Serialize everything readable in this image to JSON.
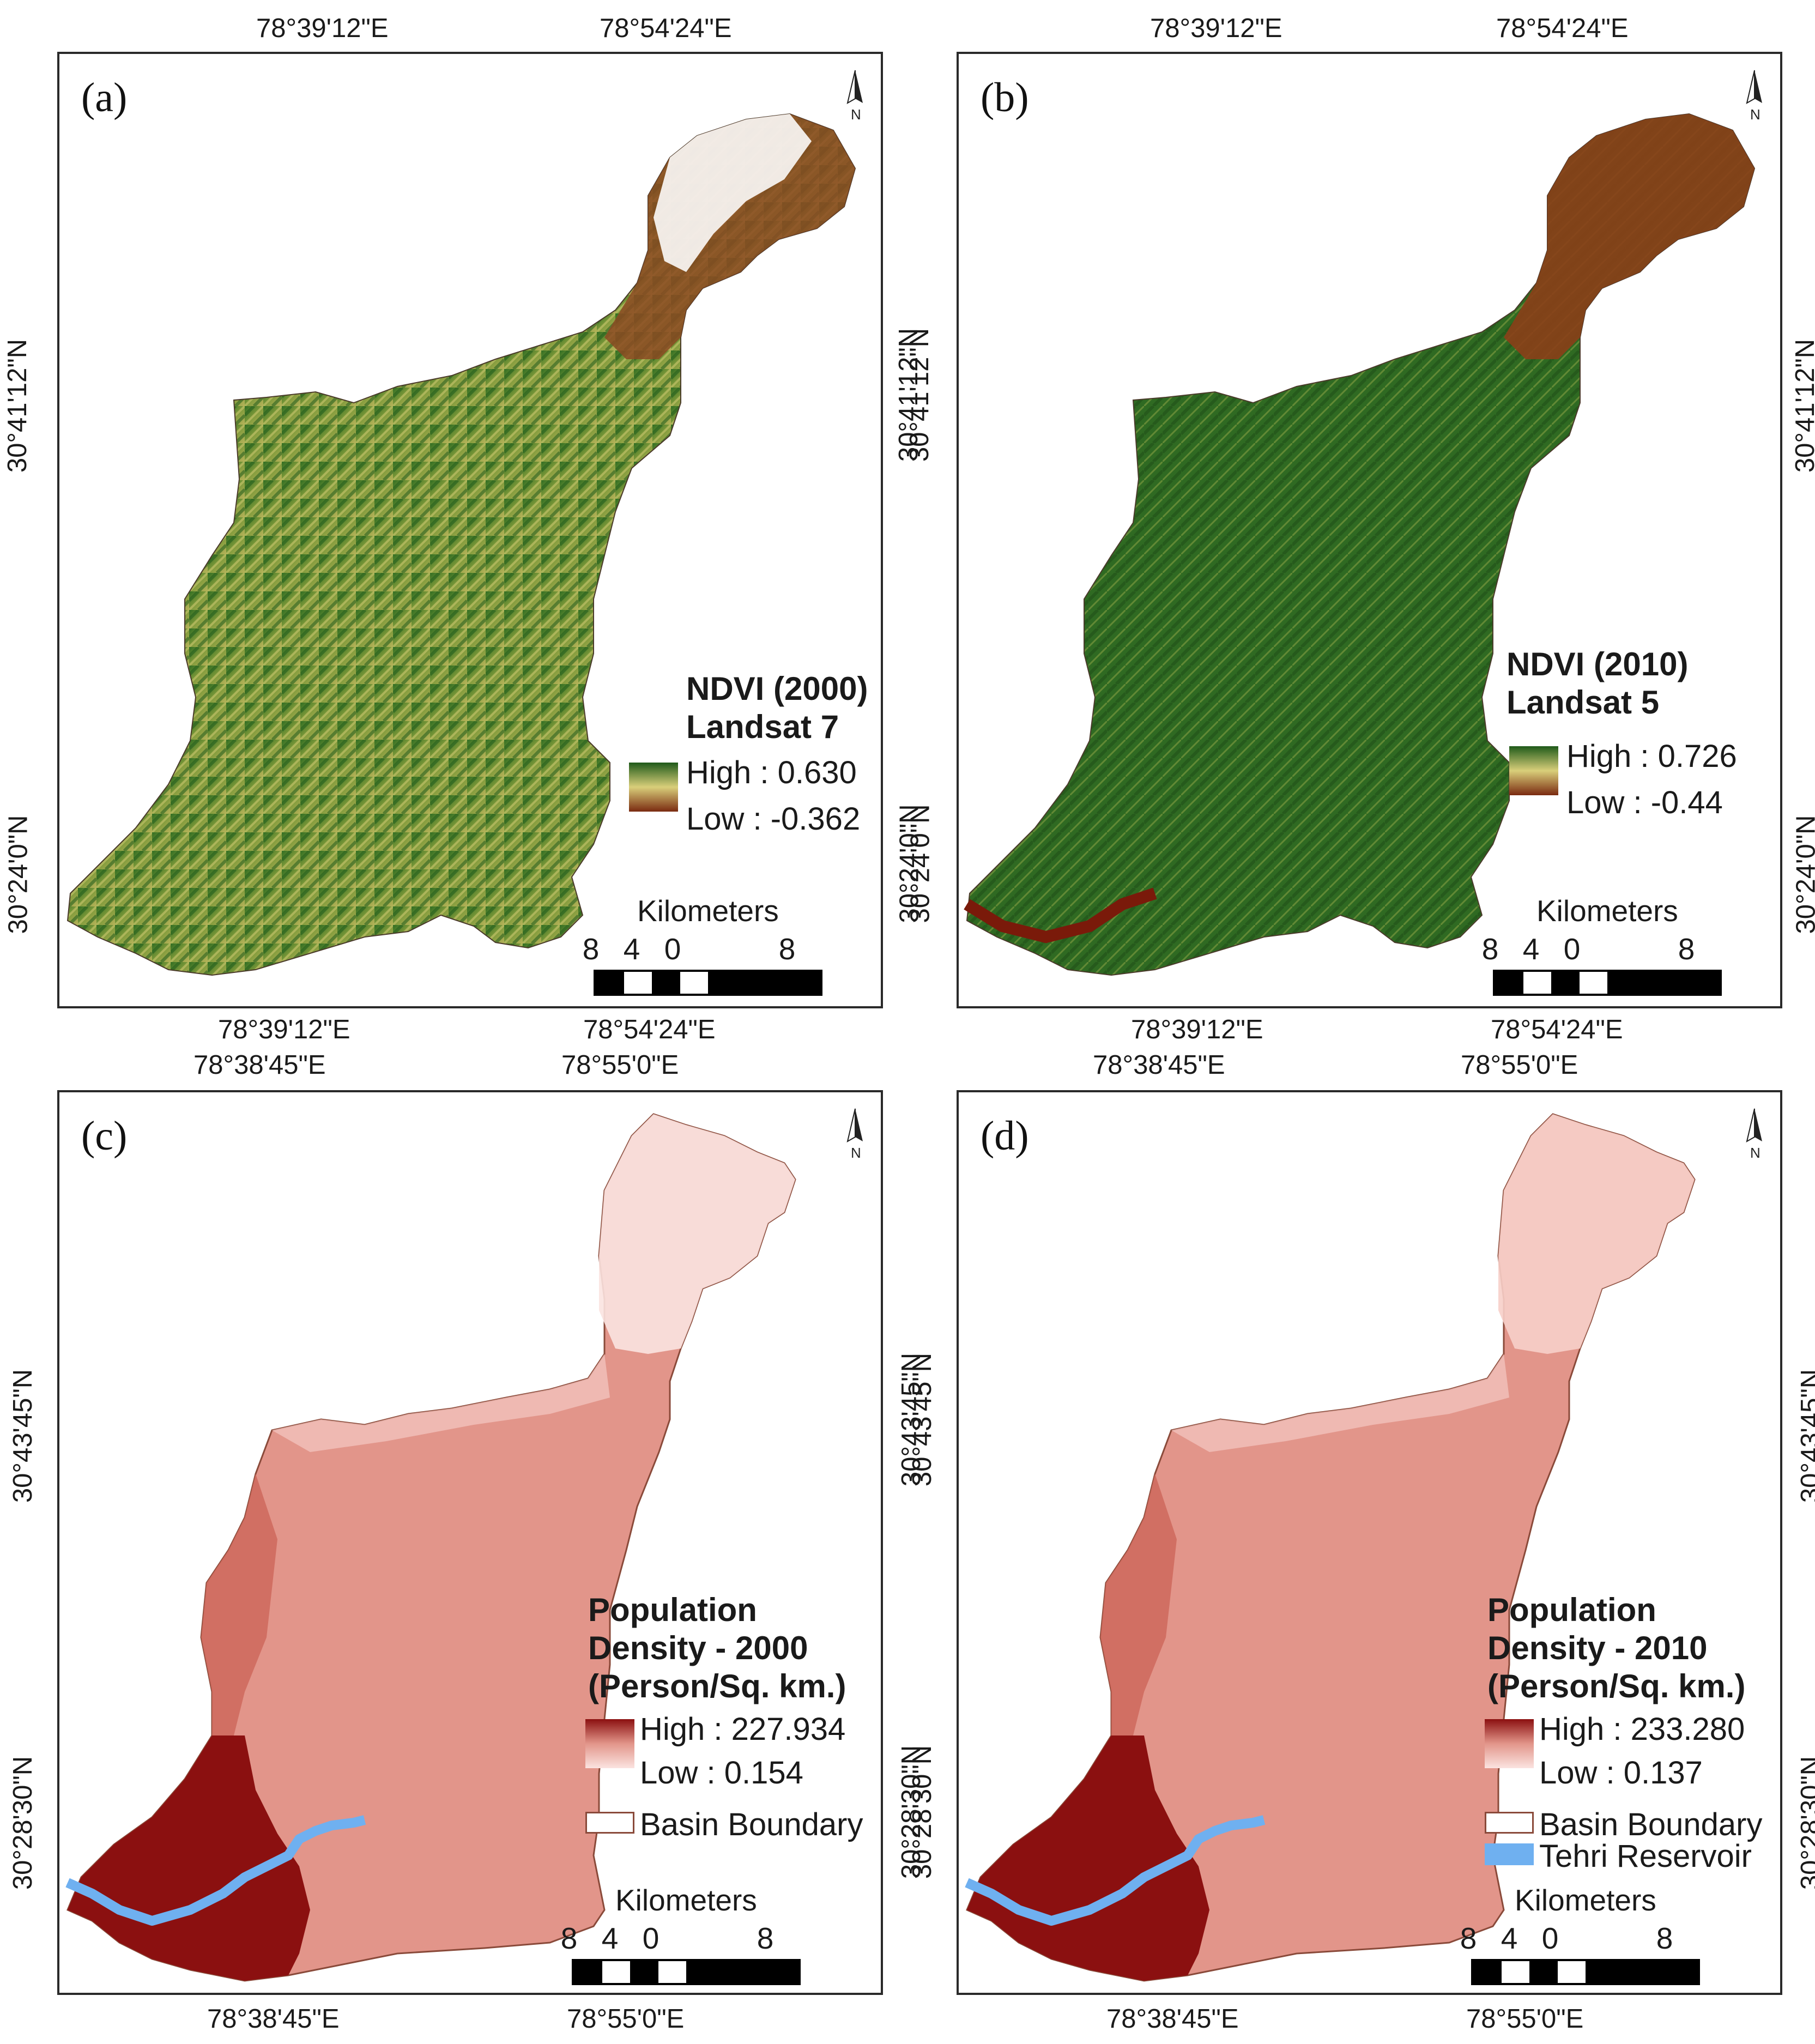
{
  "panels": [
    {
      "label": "(a)",
      "top_ticks": [
        "78°39'12\"E",
        "78°54'24\"E"
      ],
      "bottom_ticks": [
        "78°39'12\"E",
        "78°54'24\"E"
      ],
      "left_ticks": [
        "30°41'12\"N",
        "30°24'0\"N"
      ],
      "right_ticks": [
        "30°41'12\"N",
        "30°24'0\"N"
      ],
      "legend_title": [
        "NDVI (2000)",
        "Landsat 7"
      ],
      "high_label": "High : 0.630",
      "low_label": "Low : -0.362",
      "scale_title": "Kilometers",
      "scale_numbers": [
        "8",
        "4",
        "0",
        "8"
      ],
      "north_label": "N"
    },
    {
      "label": "(b)",
      "top_ticks": [
        "78°39'12\"E",
        "78°54'24\"E"
      ],
      "bottom_ticks": [
        "78°39'12\"E",
        "78°54'24\"E"
      ],
      "left_ticks": [
        "30°41'12\"N",
        "30°24'0\"N"
      ],
      "right_ticks": [
        "30°41'12\"N",
        "30°24'0\"N"
      ],
      "legend_title": [
        "NDVI (2010)",
        "Landsat 5"
      ],
      "high_label": "High : 0.726",
      "low_label": "Low : -0.44",
      "scale_title": "Kilometers",
      "scale_numbers": [
        "8",
        "4",
        "0",
        "8"
      ],
      "north_label": "N"
    },
    {
      "label": "(c)",
      "top_ticks": [
        "78°38'45\"E",
        "78°55'0\"E"
      ],
      "bottom_ticks": [
        "78°38'45\"E",
        "78°55'0\"E"
      ],
      "left_ticks": [
        "30°43'45\"N",
        "30°28'30\"N"
      ],
      "right_ticks": [
        "30°43'45\"N",
        "30°28'30\"N"
      ],
      "legend_title": [
        "Population",
        "Density - 2000",
        "(Person/Sq. km.)"
      ],
      "high_label": "High : 227.934",
      "low_label": "Low : 0.154",
      "boundary_label": "Basin Boundary",
      "scale_title": "Kilometers",
      "scale_numbers": [
        "8",
        "4",
        "0",
        "8"
      ],
      "north_label": "N"
    },
    {
      "label": "(d)",
      "top_ticks": [
        "78°38'45\"E",
        "78°55'0\"E"
      ],
      "bottom_ticks": [
        "78°38'45\"E",
        "78°55'0\"E"
      ],
      "left_ticks": [
        "30°43'45\"N",
        "30°28'30\"N"
      ],
      "right_ticks": [
        "30°43'45\"N",
        "30°28'30\"N"
      ],
      "legend_title": [
        "Population",
        "Density - 2010",
        "(Person/Sq. km.)"
      ],
      "high_label": "High : 233.280",
      "low_label": "Low : 0.137",
      "boundary_label": "Basin Boundary",
      "reservoir_label": "Tehri Reservoir",
      "scale_title": "Kilometers",
      "scale_numbers": [
        "8",
        "4",
        "0",
        "8"
      ],
      "north_label": "N"
    }
  ],
  "colors": {
    "ndvi_high": "#1f5a1a",
    "ndvi_mid": "#d9cf7a",
    "ndvi_low": "#7a2a10",
    "pop_high": "#8b1010",
    "pop_mid": "#e2958a",
    "pop_low": "#fbe3e0",
    "reservoir": "#6fb0f0",
    "boundary": "#8a4a3a"
  }
}
